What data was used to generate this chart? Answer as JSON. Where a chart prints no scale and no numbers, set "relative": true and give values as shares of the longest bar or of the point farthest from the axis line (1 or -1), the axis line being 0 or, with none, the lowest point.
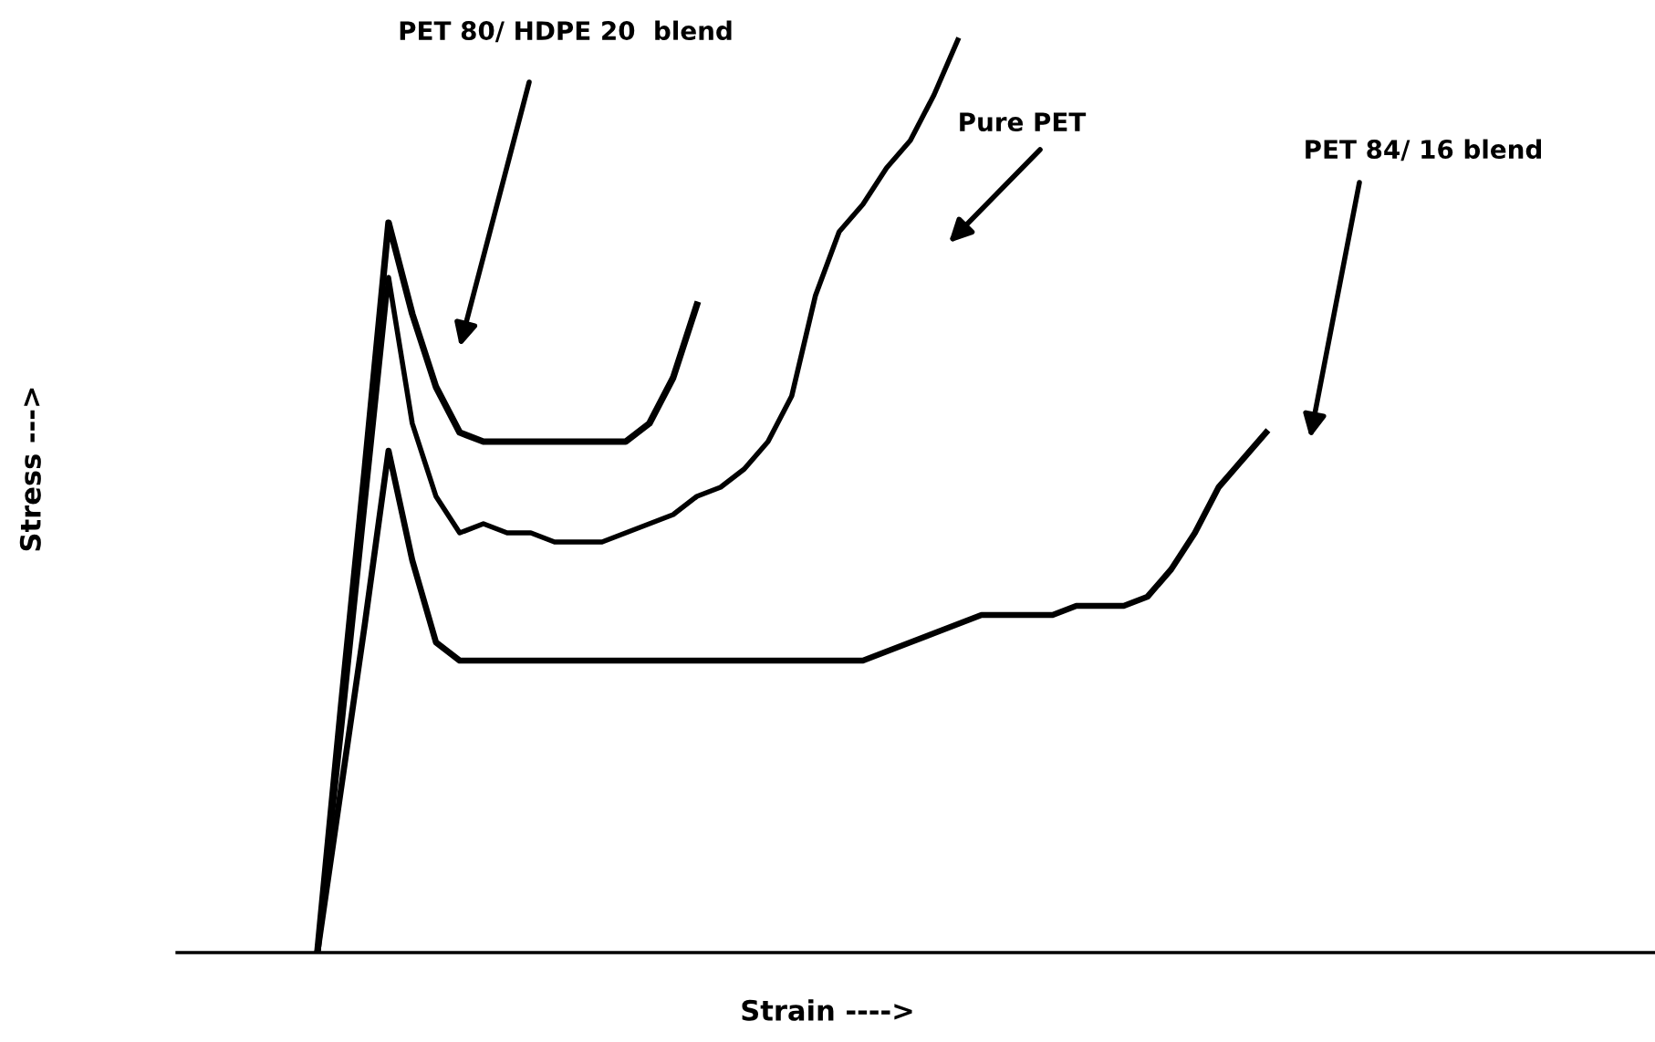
{
  "chart_data": {
    "type": "line",
    "relative": true,
    "xlabel": "Strain ---->",
    "legend": false,
    "marker": "none",
    "line_style": "solid",
    "categories": [
      null,
      null,
      null,
      null,
      null,
      null,
      null,
      null,
      null,
      null,
      null,
      null,
      null,
      null,
      null,
      null,
      null,
      null,
      null,
      null,
      null,
      null,
      null,
      null,
      null,
      null,
      null,
      null,
      null,
      null,
      null,
      null,
      null,
      null,
      null,
      null,
      null,
      null,
      null,
      null,
      null
    ],
    "series": [
      {
        "color": "#000000",
        "values": [
          0,
          0.27,
          0.53,
          0.8,
          0.7,
          0.62,
          0.57,
          0.56,
          0.56,
          0.56,
          0.56,
          0.56,
          0.56,
          0.56,
          0.58,
          0.63,
          0.71,
          null,
          null,
          null,
          null,
          null,
          null,
          null,
          null,
          null,
          null,
          null,
          null,
          null,
          null,
          null,
          null,
          null,
          null,
          null,
          null,
          null,
          null,
          null,
          null
        ]
      },
      {
        "color": "#000000",
        "values": [
          0,
          0.24,
          0.49,
          0.74,
          0.58,
          0.5,
          0.46,
          0.47,
          0.46,
          0.46,
          0.45,
          0.45,
          0.45,
          0.46,
          0.47,
          0.48,
          0.5,
          0.51,
          0.53,
          0.56,
          0.61,
          0.72,
          0.79,
          0.82,
          0.86,
          0.89,
          0.94,
          1.0,
          null,
          null,
          null,
          null,
          null,
          null,
          null,
          null,
          null,
          null,
          null,
          null,
          null
        ]
      },
      {
        "color": "#000000",
        "values": [
          0,
          0.18,
          0.36,
          0.55,
          0.43,
          0.34,
          0.32,
          0.32,
          0.32,
          0.32,
          0.32,
          0.32,
          0.32,
          0.32,
          0.32,
          0.32,
          0.32,
          0.32,
          0.32,
          0.32,
          0.32,
          0.32,
          0.32,
          0.32,
          0.33,
          0.34,
          0.35,
          0.36,
          0.37,
          0.37,
          0.37,
          0.37,
          0.38,
          0.38,
          0.38,
          0.39,
          0.42,
          0.46,
          0.51,
          0.54,
          0.57
        ]
      }
    ],
    "annotations": [
      "Stress --->",
      "PET 80/ HDPE 20  blend",
      "Pure PET",
      "PET 84/ 16 blend"
    ]
  }
}
